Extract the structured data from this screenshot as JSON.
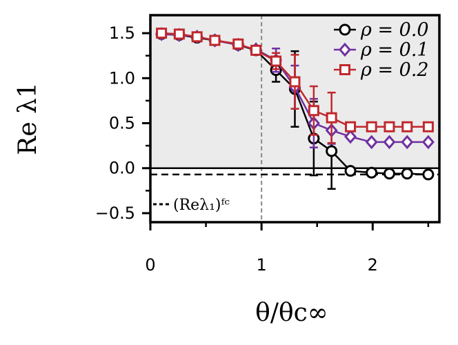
{
  "chart_data": {
    "type": "line",
    "title": "",
    "xlabel": "θ/θc∞",
    "ylabel": "Re λ1",
    "xlim": [
      0,
      2.6
    ],
    "ylim": [
      -0.6,
      1.7
    ],
    "x_ticks": [
      {
        "value": 0,
        "label": "0"
      },
      {
        "value": 1,
        "label": "1"
      },
      {
        "value": 2,
        "label": "2"
      }
    ],
    "y_ticks": [
      {
        "value": -0.5,
        "label": "−0.5"
      },
      {
        "value": 0.0,
        "label": "0.0"
      },
      {
        "value": 0.5,
        "label": "0.5"
      },
      {
        "value": 1.0,
        "label": "1.0"
      },
      {
        "value": 1.5,
        "label": "1.5"
      }
    ],
    "x_minor_ticks": [
      0.5,
      1.5,
      2.5
    ],
    "y_minor_ticks": [
      -0.25,
      0.25,
      0.75,
      1.25
    ],
    "shaded_region": {
      "from": 0.0,
      "to": 1.7,
      "color": "#ebebeb"
    },
    "vline": {
      "x": 1.0,
      "color": "#888888",
      "style": "dashed"
    },
    "hline": {
      "y": 0.0,
      "color": "#000000"
    },
    "reference": {
      "label": "(Reλ₁)ᶠᶜ",
      "y": -0.07,
      "color": "#000000",
      "style": "dashed"
    },
    "legend": {
      "position": "top-right"
    },
    "series": [
      {
        "name": "ρ = 0.0",
        "color": "#000000",
        "marker": "circle",
        "points": [
          {
            "x": 0.1,
            "y": 1.49
          },
          {
            "x": 0.26,
            "y": 1.48
          },
          {
            "x": 0.42,
            "y": 1.45
          },
          {
            "x": 0.58,
            "y": 1.42
          },
          {
            "x": 0.79,
            "y": 1.37
          },
          {
            "x": 0.95,
            "y": 1.31
          },
          {
            "x": 1.13,
            "y": 1.09,
            "err": 0.13
          },
          {
            "x": 1.3,
            "y": 0.88,
            "err": 0.42
          },
          {
            "x": 1.47,
            "y": 0.33,
            "err": 0.41
          },
          {
            "x": 1.63,
            "y": 0.19,
            "err": 0.42
          },
          {
            "x": 1.8,
            "y": -0.03
          },
          {
            "x": 1.99,
            "y": -0.05
          },
          {
            "x": 2.15,
            "y": -0.06
          },
          {
            "x": 2.31,
            "y": -0.06
          },
          {
            "x": 2.5,
            "y": -0.07
          }
        ]
      },
      {
        "name": "ρ = 0.1",
        "color": "#7030a0",
        "marker": "diamond",
        "points": [
          {
            "x": 0.1,
            "y": 1.49
          },
          {
            "x": 0.26,
            "y": 1.48
          },
          {
            "x": 0.42,
            "y": 1.46
          },
          {
            "x": 0.58,
            "y": 1.42
          },
          {
            "x": 0.79,
            "y": 1.37
          },
          {
            "x": 0.95,
            "y": 1.32
          },
          {
            "x": 1.13,
            "y": 1.2,
            "err": 0.13
          },
          {
            "x": 1.3,
            "y": 0.9,
            "err": 0.24
          },
          {
            "x": 1.47,
            "y": 0.5,
            "err": 0.27
          },
          {
            "x": 1.63,
            "y": 0.42,
            "err": 0.15
          },
          {
            "x": 1.8,
            "y": 0.35
          },
          {
            "x": 1.99,
            "y": 0.29
          },
          {
            "x": 2.15,
            "y": 0.29
          },
          {
            "x": 2.31,
            "y": 0.29
          },
          {
            "x": 2.5,
            "y": 0.29
          }
        ]
      },
      {
        "name": "ρ = 0.2",
        "color": "#c0282d",
        "marker": "square",
        "points": [
          {
            "x": 0.1,
            "y": 1.5
          },
          {
            "x": 0.26,
            "y": 1.49
          },
          {
            "x": 0.42,
            "y": 1.46
          },
          {
            "x": 0.58,
            "y": 1.42
          },
          {
            "x": 0.79,
            "y": 1.38
          },
          {
            "x": 0.95,
            "y": 1.31
          },
          {
            "x": 1.13,
            "y": 1.19,
            "err": 0.09
          },
          {
            "x": 1.3,
            "y": 0.96,
            "err": 0.3
          },
          {
            "x": 1.47,
            "y": 0.64,
            "err": 0.27
          },
          {
            "x": 1.63,
            "y": 0.56,
            "err": 0.28
          },
          {
            "x": 1.8,
            "y": 0.46
          },
          {
            "x": 1.99,
            "y": 0.46
          },
          {
            "x": 2.15,
            "y": 0.46
          },
          {
            "x": 2.31,
            "y": 0.46
          },
          {
            "x": 2.5,
            "y": 0.46
          }
        ]
      }
    ]
  }
}
